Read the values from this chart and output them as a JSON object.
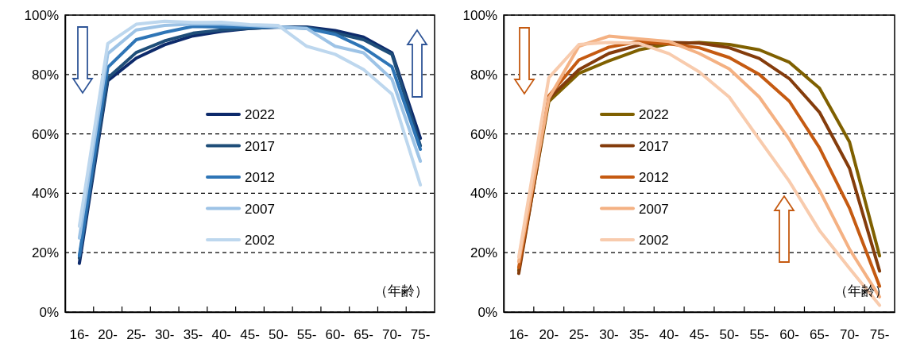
{
  "chart_data": [
    {
      "type": "line",
      "categories": [
        "16-",
        "20-",
        "25-",
        "30-",
        "35-",
        "40-",
        "45-",
        "50-",
        "55-",
        "60-",
        "65-",
        "70-",
        "75-"
      ],
      "series": [
        {
          "name": "2022",
          "color": "#0d2a6b",
          "values": [
            16.4,
            77.9,
            85.5,
            90,
            93,
            94.5,
            95.5,
            96,
            96,
            94.8,
            92.6,
            87.3,
            58.5
          ]
        },
        {
          "name": "2017",
          "color": "#1f4e79",
          "values": [
            18.2,
            78.8,
            87.4,
            91.3,
            93.9,
            95,
            95.5,
            96,
            95.8,
            94,
            91.7,
            86.8,
            56
          ]
        },
        {
          "name": "2012",
          "color": "#2e75b6",
          "values": [
            19,
            82.4,
            91.7,
            94.2,
            96.2,
            96,
            96,
            96,
            95.5,
            93.5,
            89,
            82.6,
            54.8
          ]
        },
        {
          "name": "2007",
          "color": "#9dc3e6",
          "values": [
            24.9,
            87,
            95,
            96.5,
            97,
            97,
            96.5,
            96,
            95.5,
            89.5,
            87.3,
            78.4,
            50.8
          ]
        },
        {
          "name": "2002",
          "color": "#bdd7ee",
          "values": [
            28.9,
            90.4,
            96.9,
            97.9,
            97.5,
            97.6,
            96.8,
            96.5,
            89.5,
            86.8,
            81.7,
            73.4,
            42.8
          ]
        }
      ],
      "ylim": [
        0,
        100
      ],
      "yticks": [
        {
          "value": 0,
          "label": "0%"
        },
        {
          "value": 20,
          "label": "20%"
        },
        {
          "value": 40,
          "label": "40%"
        },
        {
          "value": 60,
          "label": "60%"
        },
        {
          "value": 80,
          "label": "80%"
        },
        {
          "value": 100,
          "label": "100%"
        }
      ],
      "grid": "y",
      "legend": "center",
      "line_style": "solid",
      "annotations": [
        "（年齢）"
      ]
    },
    {
      "type": "line",
      "categories": [
        "16-",
        "20-",
        "25-",
        "30-",
        "35-",
        "40-",
        "45-",
        "50-",
        "55-",
        "60-",
        "65-",
        "70-",
        "75-"
      ],
      "series": [
        {
          "name": "2022",
          "color": "#7f6000",
          "values": [
            14,
            70.9,
            80.4,
            84.6,
            88.3,
            90.3,
            90.8,
            90.1,
            88.3,
            84.1,
            75.4,
            57.3,
            18.9
          ]
        },
        {
          "name": "2017",
          "color": "#843c0c",
          "values": [
            13,
            71.9,
            81.6,
            87.1,
            89.9,
            90.8,
            90.6,
            89,
            85.4,
            78.6,
            67.3,
            48.4,
            13.8
          ]
        },
        {
          "name": "2012",
          "color": "#c55a11",
          "values": [
            15,
            72.8,
            84.9,
            89.2,
            91.1,
            90.3,
            89,
            85.7,
            80,
            71,
            55.3,
            35,
            8.7
          ]
        },
        {
          "name": "2007",
          "color": "#f4b183",
          "values": [
            17,
            72,
            89.5,
            92.9,
            92,
            91.1,
            87.1,
            81.9,
            72.4,
            58.1,
            41,
            21.2,
            5.1
          ]
        },
        {
          "name": "2002",
          "color": "#f8cbad",
          "values": [
            18.5,
            78.9,
            90.1,
            90.8,
            90.5,
            87,
            80.9,
            72.4,
            58.1,
            44,
            27.5,
            14.7,
            2.3
          ]
        }
      ],
      "ylim": [
        0,
        100
      ],
      "yticks": [
        {
          "value": 0,
          "label": "0%"
        },
        {
          "value": 20,
          "label": "20%"
        },
        {
          "value": 40,
          "label": "40%"
        },
        {
          "value": 60,
          "label": "60%"
        },
        {
          "value": 80,
          "label": "80%"
        },
        {
          "value": 100,
          "label": "100%"
        }
      ],
      "grid": "y",
      "legend": "center left",
      "line_style": "solid",
      "annotations": [
        "（年齢）"
      ]
    }
  ]
}
